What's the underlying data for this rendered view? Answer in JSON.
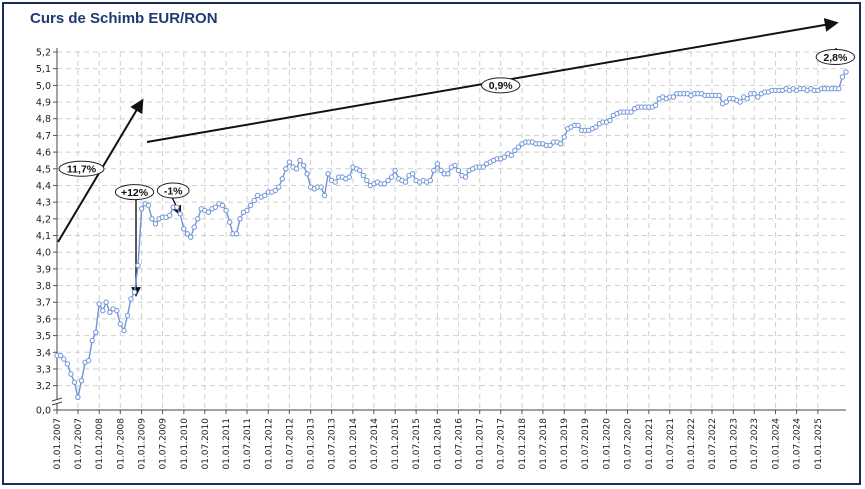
{
  "chart_data": {
    "type": "line",
    "title": "Curs de Schimb EUR/RON",
    "xlabel": "",
    "ylabel": "",
    "y_ticks": [
      "0,0",
      "3,2",
      "3,3",
      "3,4",
      "3,5",
      "3,6",
      "3,7",
      "3,8",
      "3,9",
      "4,0",
      "4,1",
      "4,2",
      "4,3",
      "4,4",
      "4,5",
      "4,6",
      "4,7",
      "4,8",
      "4,9",
      "5,0",
      "5,1",
      "5,2"
    ],
    "y_range": [
      3.15,
      5.2
    ],
    "y_axis_break": true,
    "x_range": [
      "2007-01-01",
      "2025-09-01"
    ],
    "x_ticks": [
      "01.01.2007",
      "01.07.2007",
      "01.01.2008",
      "01.07.2008",
      "01.01.2009",
      "01.07.2009",
      "01.01.2010",
      "01.07.2010",
      "01.01.2011",
      "01.07.2011",
      "01.01.2012",
      "01.07.2012",
      "01.01.2013",
      "01.07.2013",
      "01.01.2014",
      "01.07.2014",
      "01.01.2015",
      "01.07.2015",
      "01.01.2016",
      "01.07.2016",
      "01.01.2017",
      "01.07.2017",
      "01.01.2018",
      "01.07.2018",
      "01.01.2019",
      "01.07.2019",
      "01.01.2020",
      "01.07.2020",
      "01.01.2021",
      "01.07.2021",
      "01.01.2022",
      "01.07.2022",
      "01.01.2023",
      "01.07.2023",
      "01.01.2024",
      "01.07.2024",
      "01.01.2025"
    ],
    "grid": true,
    "line_color": "#6f93d8",
    "series": [
      {
        "name": "",
        "points": [
          [
            "2007-01-01",
            3.38
          ],
          [
            "2007-02-01",
            3.38
          ],
          [
            "2007-03-01",
            3.36
          ],
          [
            "2007-04-01",
            3.33
          ],
          [
            "2007-05-01",
            3.27
          ],
          [
            "2007-06-01",
            3.22
          ],
          [
            "2007-07-01",
            3.13
          ],
          [
            "2007-08-01",
            3.23
          ],
          [
            "2007-09-01",
            3.34
          ],
          [
            "2007-10-01",
            3.35
          ],
          [
            "2007-11-01",
            3.47
          ],
          [
            "2007-12-01",
            3.52
          ],
          [
            "2008-01-01",
            3.69
          ],
          [
            "2008-02-01",
            3.65
          ],
          [
            "2008-03-01",
            3.7
          ],
          [
            "2008-04-01",
            3.64
          ],
          [
            "2008-05-01",
            3.66
          ],
          [
            "2008-06-01",
            3.65
          ],
          [
            "2008-07-01",
            3.57
          ],
          [
            "2008-08-01",
            3.53
          ],
          [
            "2008-09-01",
            3.62
          ],
          [
            "2008-10-01",
            3.72
          ],
          [
            "2008-11-01",
            3.76
          ],
          [
            "2008-12-01",
            3.92
          ],
          [
            "2009-01-01",
            4.26
          ],
          [
            "2009-02-01",
            4.29
          ],
          [
            "2009-03-01",
            4.28
          ],
          [
            "2009-04-01",
            4.2
          ],
          [
            "2009-05-01",
            4.17
          ],
          [
            "2009-06-01",
            4.2
          ],
          [
            "2009-07-01",
            4.21
          ],
          [
            "2009-08-01",
            4.21
          ],
          [
            "2009-09-01",
            4.22
          ],
          [
            "2009-10-01",
            4.27
          ],
          [
            "2009-11-01",
            4.27
          ],
          [
            "2009-12-01",
            4.23
          ],
          [
            "2010-01-01",
            4.14
          ],
          [
            "2010-02-01",
            4.11
          ],
          [
            "2010-03-01",
            4.09
          ],
          [
            "2010-04-01",
            4.15
          ],
          [
            "2010-05-01",
            4.2
          ],
          [
            "2010-06-01",
            4.26
          ],
          [
            "2010-07-01",
            4.25
          ],
          [
            "2010-08-01",
            4.24
          ],
          [
            "2010-09-01",
            4.26
          ],
          [
            "2010-10-01",
            4.27
          ],
          [
            "2010-11-01",
            4.29
          ],
          [
            "2010-12-01",
            4.28
          ],
          [
            "2011-01-01",
            4.25
          ],
          [
            "2011-02-01",
            4.18
          ],
          [
            "2011-03-01",
            4.11
          ],
          [
            "2011-04-01",
            4.11
          ],
          [
            "2011-05-01",
            4.2
          ],
          [
            "2011-06-01",
            4.24
          ],
          [
            "2011-07-01",
            4.25
          ],
          [
            "2011-08-01",
            4.28
          ],
          [
            "2011-09-01",
            4.31
          ],
          [
            "2011-10-01",
            4.34
          ],
          [
            "2011-11-01",
            4.33
          ],
          [
            "2011-12-01",
            4.34
          ],
          [
            "2012-01-01",
            4.36
          ],
          [
            "2012-02-01",
            4.36
          ],
          [
            "2012-03-01",
            4.37
          ],
          [
            "2012-04-01",
            4.39
          ],
          [
            "2012-05-01",
            4.44
          ],
          [
            "2012-06-01",
            4.5
          ],
          [
            "2012-07-01",
            4.54
          ],
          [
            "2012-08-01",
            4.51
          ],
          [
            "2012-09-01",
            4.5
          ],
          [
            "2012-10-01",
            4.55
          ],
          [
            "2012-11-01",
            4.52
          ],
          [
            "2012-12-01",
            4.47
          ],
          [
            "2013-01-01",
            4.39
          ],
          [
            "2013-02-01",
            4.38
          ],
          [
            "2013-03-01",
            4.39
          ],
          [
            "2013-04-01",
            4.39
          ],
          [
            "2013-05-01",
            4.34
          ],
          [
            "2013-06-01",
            4.47
          ],
          [
            "2013-07-01",
            4.43
          ],
          [
            "2013-08-01",
            4.42
          ],
          [
            "2013-09-01",
            4.45
          ],
          [
            "2013-10-01",
            4.45
          ],
          [
            "2013-11-01",
            4.44
          ],
          [
            "2013-12-01",
            4.45
          ],
          [
            "2014-01-01",
            4.51
          ],
          [
            "2014-02-01",
            4.5
          ],
          [
            "2014-03-01",
            4.49
          ],
          [
            "2014-04-01",
            4.46
          ],
          [
            "2014-05-01",
            4.43
          ],
          [
            "2014-06-01",
            4.4
          ],
          [
            "2014-07-01",
            4.41
          ],
          [
            "2014-08-01",
            4.42
          ],
          [
            "2014-09-01",
            4.41
          ],
          [
            "2014-10-01",
            4.41
          ],
          [
            "2014-11-01",
            4.43
          ],
          [
            "2014-12-01",
            4.45
          ],
          [
            "2015-01-01",
            4.49
          ],
          [
            "2015-02-01",
            4.44
          ],
          [
            "2015-03-01",
            4.43
          ],
          [
            "2015-04-01",
            4.42
          ],
          [
            "2015-05-01",
            4.46
          ],
          [
            "2015-06-01",
            4.47
          ],
          [
            "2015-07-01",
            4.43
          ],
          [
            "2015-08-01",
            4.42
          ],
          [
            "2015-09-01",
            4.43
          ],
          [
            "2015-10-01",
            4.42
          ],
          [
            "2015-11-01",
            4.43
          ],
          [
            "2015-12-01",
            4.49
          ],
          [
            "2016-01-01",
            4.53
          ],
          [
            "2016-02-01",
            4.49
          ],
          [
            "2016-03-01",
            4.47
          ],
          [
            "2016-04-01",
            4.47
          ],
          [
            "2016-05-01",
            4.51
          ],
          [
            "2016-06-01",
            4.52
          ],
          [
            "2016-07-01",
            4.49
          ],
          [
            "2016-08-01",
            4.46
          ],
          [
            "2016-09-01",
            4.45
          ],
          [
            "2016-10-01",
            4.49
          ],
          [
            "2016-11-01",
            4.5
          ],
          [
            "2016-12-01",
            4.51
          ],
          [
            "2017-01-01",
            4.51
          ],
          [
            "2017-02-01",
            4.51
          ],
          [
            "2017-03-01",
            4.53
          ],
          [
            "2017-04-01",
            4.54
          ],
          [
            "2017-05-01",
            4.55
          ],
          [
            "2017-06-01",
            4.56
          ],
          [
            "2017-07-01",
            4.56
          ],
          [
            "2017-08-01",
            4.57
          ],
          [
            "2017-09-01",
            4.59
          ],
          [
            "2017-10-01",
            4.58
          ],
          [
            "2017-11-01",
            4.61
          ],
          [
            "2017-12-01",
            4.63
          ],
          [
            "2018-01-01",
            4.65
          ],
          [
            "2018-02-01",
            4.66
          ],
          [
            "2018-03-01",
            4.66
          ],
          [
            "2018-04-01",
            4.66
          ],
          [
            "2018-05-01",
            4.65
          ],
          [
            "2018-06-01",
            4.65
          ],
          [
            "2018-07-01",
            4.65
          ],
          [
            "2018-08-01",
            4.64
          ],
          [
            "2018-09-01",
            4.64
          ],
          [
            "2018-10-01",
            4.66
          ],
          [
            "2018-11-01",
            4.66
          ],
          [
            "2018-12-01",
            4.65
          ],
          [
            "2019-01-01",
            4.69
          ],
          [
            "2019-02-01",
            4.74
          ],
          [
            "2019-03-01",
            4.75
          ],
          [
            "2019-04-01",
            4.76
          ],
          [
            "2019-05-01",
            4.76
          ],
          [
            "2019-06-01",
            4.73
          ],
          [
            "2019-07-01",
            4.73
          ],
          [
            "2019-08-01",
            4.73
          ],
          [
            "2019-09-01",
            4.74
          ],
          [
            "2019-10-01",
            4.75
          ],
          [
            "2019-11-01",
            4.77
          ],
          [
            "2019-12-01",
            4.78
          ],
          [
            "2020-01-01",
            4.78
          ],
          [
            "2020-02-01",
            4.79
          ],
          [
            "2020-03-01",
            4.82
          ],
          [
            "2020-04-01",
            4.83
          ],
          [
            "2020-05-01",
            4.84
          ],
          [
            "2020-06-01",
            4.84
          ],
          [
            "2020-07-01",
            4.84
          ],
          [
            "2020-08-01",
            4.84
          ],
          [
            "2020-09-01",
            4.86
          ],
          [
            "2020-10-01",
            4.87
          ],
          [
            "2020-11-01",
            4.87
          ],
          [
            "2020-12-01",
            4.87
          ],
          [
            "2021-01-01",
            4.87
          ],
          [
            "2021-02-01",
            4.87
          ],
          [
            "2021-03-01",
            4.88
          ],
          [
            "2021-04-01",
            4.92
          ],
          [
            "2021-05-01",
            4.93
          ],
          [
            "2021-06-01",
            4.92
          ],
          [
            "2021-07-01",
            4.93
          ],
          [
            "2021-08-01",
            4.93
          ],
          [
            "2021-09-01",
            4.95
          ],
          [
            "2021-10-01",
            4.95
          ],
          [
            "2021-11-01",
            4.95
          ],
          [
            "2021-12-01",
            4.95
          ],
          [
            "2022-01-01",
            4.94
          ],
          [
            "2022-02-01",
            4.95
          ],
          [
            "2022-03-01",
            4.95
          ],
          [
            "2022-04-01",
            4.95
          ],
          [
            "2022-05-01",
            4.94
          ],
          [
            "2022-06-01",
            4.94
          ],
          [
            "2022-07-01",
            4.94
          ],
          [
            "2022-08-01",
            4.94
          ],
          [
            "2022-09-01",
            4.94
          ],
          [
            "2022-10-01",
            4.89
          ],
          [
            "2022-11-01",
            4.9
          ],
          [
            "2022-12-01",
            4.92
          ],
          [
            "2023-01-01",
            4.92
          ],
          [
            "2023-02-01",
            4.91
          ],
          [
            "2023-03-01",
            4.9
          ],
          [
            "2023-04-01",
            4.93
          ],
          [
            "2023-05-01",
            4.92
          ],
          [
            "2023-06-01",
            4.95
          ],
          [
            "2023-07-01",
            4.95
          ],
          [
            "2023-08-01",
            4.93
          ],
          [
            "2023-09-01",
            4.95
          ],
          [
            "2023-10-01",
            4.96
          ],
          [
            "2023-11-01",
            4.96
          ],
          [
            "2023-12-01",
            4.97
          ],
          [
            "2024-01-01",
            4.97
          ],
          [
            "2024-02-01",
            4.97
          ],
          [
            "2024-03-01",
            4.97
          ],
          [
            "2024-04-01",
            4.98
          ],
          [
            "2024-05-01",
            4.97
          ],
          [
            "2024-06-01",
            4.98
          ],
          [
            "2024-07-01",
            4.97
          ],
          [
            "2024-08-01",
            4.98
          ],
          [
            "2024-09-01",
            4.98
          ],
          [
            "2024-10-01",
            4.97
          ],
          [
            "2024-11-01",
            4.98
          ],
          [
            "2024-12-01",
            4.97
          ],
          [
            "2025-01-01",
            4.97
          ],
          [
            "2025-02-01",
            4.98
          ],
          [
            "2025-03-01",
            4.98
          ],
          [
            "2025-04-01",
            4.98
          ],
          [
            "2025-05-01",
            4.98
          ],
          [
            "2025-06-01",
            4.98
          ],
          [
            "2025-07-01",
            4.98
          ],
          [
            "2025-08-01",
            5.05
          ],
          [
            "2025-09-01",
            5.08
          ]
        ]
      }
    ],
    "annotations": [
      {
        "label": "11,7%",
        "x": "2007-08-01",
        "y": 4.5
      },
      {
        "label": "+12%",
        "x": "2008-11-01",
        "y": 4.36
      },
      {
        "label": "-1%",
        "x": "2009-10-01",
        "y": 4.37
      },
      {
        "label": "0,9%",
        "x": "2017-07-01",
        "y": 5.0
      },
      {
        "label": "2,8%",
        "x": "2025-06-01",
        "y": 5.17
      }
    ]
  }
}
